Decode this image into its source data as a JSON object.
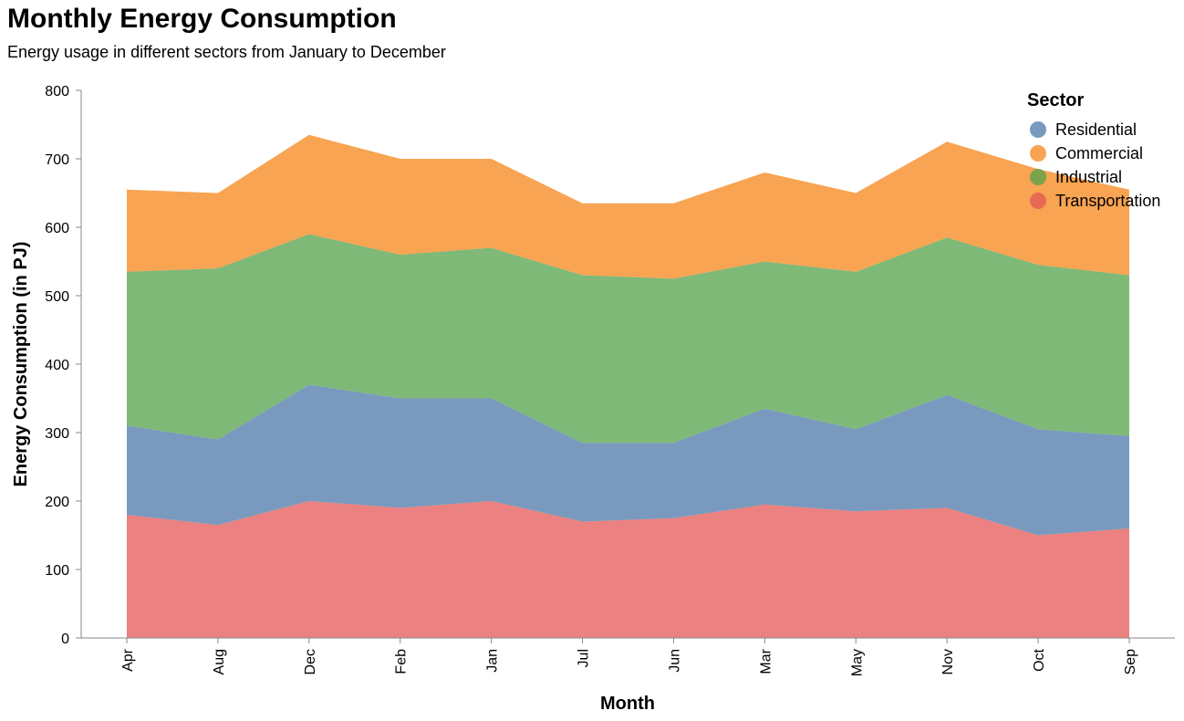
{
  "title": "Monthly Energy Consumption",
  "subtitle": "Energy usage in different sectors from January to December",
  "chart_data": {
    "type": "area",
    "stacked": true,
    "categories": [
      "Apr",
      "Aug",
      "Dec",
      "Feb",
      "Jan",
      "Jul",
      "Jun",
      "Mar",
      "May",
      "Nov",
      "Oct",
      "Sep"
    ],
    "series": [
      {
        "name": "Transportation",
        "color": "#e45756",
        "values": [
          180,
          165,
          200,
          190,
          200,
          170,
          175,
          195,
          185,
          190,
          150,
          160
        ]
      },
      {
        "name": "Residential",
        "color": "#4c78a8",
        "values": [
          130,
          125,
          170,
          160,
          150,
          115,
          110,
          140,
          120,
          165,
          155,
          135
        ]
      },
      {
        "name": "Industrial",
        "color": "#54a24b",
        "values": [
          225,
          250,
          220,
          210,
          220,
          245,
          240,
          215,
          230,
          230,
          240,
          235
        ]
      },
      {
        "name": "Commercial",
        "color": "#f58518",
        "values": [
          120,
          110,
          145,
          140,
          130,
          105,
          110,
          130,
          115,
          140,
          140,
          125
        ]
      }
    ],
    "xlabel": "Month",
    "ylabel": "Energy Consumption (in PJ)",
    "ylim": [
      0,
      800
    ],
    "yticks": [
      0,
      100,
      200,
      300,
      400,
      500,
      600,
      700,
      800
    ],
    "grid": false,
    "area_opacity": 0.75,
    "legend": {
      "title": "Sector",
      "placement": "top-right",
      "items": [
        "Residential",
        "Commercial",
        "Industrial",
        "Transportation"
      ]
    }
  }
}
